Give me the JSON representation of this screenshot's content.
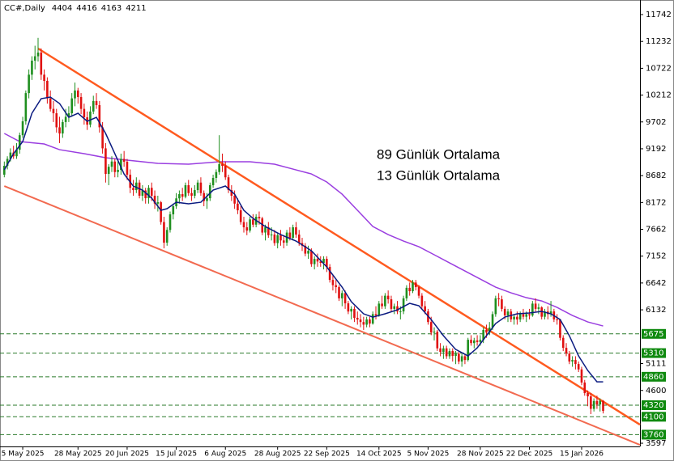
{
  "chart_data": {
    "type": "candlestick",
    "title": "CC#,Daily",
    "up_color": "#1f8f1f",
    "down_color": "#e01010",
    "xlim": [
      -1.4,
      207
    ],
    "ylim": [
      3536,
      12019
    ],
    "yticks": [
      11742,
      11232,
      10722,
      10212,
      9702,
      9192,
      8682,
      8172,
      7662,
      7152,
      6642,
      6132,
      5111,
      4600,
      3597
    ],
    "xticks": [
      {
        "value": 6,
        "label": "5 May 2025"
      },
      {
        "value": 24,
        "label": "28 May 2025"
      },
      {
        "value": 40,
        "label": "20 Jun 2025"
      },
      {
        "value": 56,
        "label": "15 Jul 2025"
      },
      {
        "value": 72,
        "label": "6 Aug 2025"
      },
      {
        "value": 89,
        "label": "28 Aug 2025"
      },
      {
        "value": 105,
        "label": "22 Sep 2025"
      },
      {
        "value": 122,
        "label": "14 Oct 2025"
      },
      {
        "value": 138,
        "label": "5 Nov 2025"
      },
      {
        "value": 155,
        "label": "28 Nov 2025"
      },
      {
        "value": 171,
        "label": "22 Dec 2025"
      },
      {
        "value": 188,
        "label": "15 Jan 2026"
      }
    ],
    "levels": [
      5675,
      5310,
      4860,
      4320,
      4100,
      3760
    ],
    "level_color": "#2a7a2a",
    "moving_averages": [
      {
        "name": "89 Günlük Ortalama",
        "color": "#9a3ee0",
        "x": [
          0,
          5,
          13,
          18,
          26,
          33,
          40,
          50,
          60,
          70,
          80,
          88,
          95,
          100,
          105,
          110,
          115,
          120,
          125,
          130,
          135,
          140,
          145,
          150,
          155,
          160,
          165,
          170,
          175,
          180,
          185,
          190,
          195
        ],
        "values": [
          9483,
          9329,
          9283,
          9175,
          9099,
          9022,
          8976,
          8914,
          8899,
          8945,
          8945,
          8899,
          8791,
          8714,
          8561,
          8330,
          8023,
          7715,
          7562,
          7439,
          7331,
          7178,
          7024,
          6870,
          6716,
          6563,
          6455,
          6363,
          6301,
          6178,
          6025,
          5902,
          5825
        ]
      },
      {
        "name": "13 Günlük Ortalama",
        "color": "#0a1a80",
        "x": [
          0,
          3,
          6,
          9,
          12,
          15,
          18,
          21,
          24,
          27,
          30,
          33,
          36,
          39,
          42,
          45,
          48,
          51,
          53,
          56,
          60,
          64,
          68,
          72,
          75,
          78,
          81,
          85,
          90,
          95,
          100,
          105,
          110,
          113,
          117,
          120,
          124,
          128,
          132,
          135,
          139,
          143,
          147,
          151,
          154,
          157,
          160,
          163,
          167,
          171,
          175,
          178,
          181,
          184,
          187,
          190,
          193,
          195
        ],
        "values": [
          8791,
          9099,
          9329,
          9867,
          10144,
          10175,
          10052,
          9790,
          9867,
          9714,
          9790,
          9483,
          9099,
          8714,
          8484,
          8407,
          8253,
          8023,
          8054,
          8176,
          8146,
          8176,
          8407,
          8484,
          8330,
          8023,
          7869,
          7715,
          7562,
          7439,
          7254,
          6947,
          6563,
          6286,
          6056,
          5994,
          6056,
          6132,
          6255,
          6209,
          5948,
          5640,
          5379,
          5256,
          5410,
          5640,
          5871,
          5994,
          6056,
          6071,
          6102,
          6056,
          5948,
          5640,
          5256,
          4979,
          4764,
          4764
        ]
      }
    ],
    "trendlines": [
      {
        "color": "#ff5a1f",
        "x": [
          11,
          207
        ],
        "values": [
          11097,
          3950
        ]
      },
      {
        "color": "#f26a50",
        "x": [
          0,
          207
        ],
        "values": [
          8484,
          3566
        ]
      }
    ],
    "candles": [
      [
        8700,
        8950,
        8650,
        8868
      ],
      [
        8868,
        9050,
        8800,
        9000
      ],
      [
        9000,
        9200,
        8950,
        9120
      ],
      [
        9120,
        9250,
        9000,
        9050
      ],
      [
        9050,
        9300,
        9000,
        9175
      ],
      [
        9175,
        9500,
        9100,
        9450
      ],
      [
        9450,
        9800,
        9400,
        9714
      ],
      [
        9714,
        10300,
        9650,
        10250
      ],
      [
        10250,
        10700,
        10150,
        10600
      ],
      [
        10600,
        10950,
        10500,
        10866
      ],
      [
        10866,
        11150,
        10700,
        10950
      ],
      [
        10950,
        11300,
        10850,
        11020
      ],
      [
        11020,
        11100,
        10500,
        10600
      ],
      [
        10600,
        10700,
        10300,
        10482
      ],
      [
        10482,
        10550,
        10050,
        10150
      ],
      [
        10150,
        10300,
        9900,
        9950
      ],
      [
        9950,
        10100,
        9700,
        9867
      ],
      [
        9867,
        9950,
        9500,
        9600
      ],
      [
        9600,
        9800,
        9300,
        9483
      ],
      [
        9483,
        9750,
        9400,
        9700
      ],
      [
        9700,
        9950,
        9600,
        9800
      ],
      [
        9800,
        10000,
        9700,
        9867
      ],
      [
        9867,
        10250,
        9800,
        10150
      ],
      [
        10150,
        10450,
        10000,
        10300
      ],
      [
        10300,
        10350,
        10050,
        10175
      ],
      [
        10175,
        10250,
        9850,
        9950
      ],
      [
        9950,
        10050,
        9650,
        9790
      ],
      [
        9790,
        9900,
        9550,
        9650
      ],
      [
        9650,
        10000,
        9600,
        9900
      ],
      [
        9900,
        10200,
        9850,
        10100
      ],
      [
        10100,
        10250,
        9950,
        10021
      ],
      [
        10021,
        10100,
        9500,
        9600
      ],
      [
        9600,
        9700,
        9100,
        9200
      ],
      [
        9200,
        9300,
        8550,
        8714
      ],
      [
        8714,
        8900,
        8500,
        8850
      ],
      [
        8850,
        9050,
        8750,
        8950
      ],
      [
        8950,
        9000,
        8650,
        8750
      ],
      [
        8750,
        8950,
        8650,
        8791
      ],
      [
        8791,
        9100,
        8700,
        9000
      ],
      [
        9000,
        9150,
        8850,
        8945
      ],
      [
        8945,
        9000,
        8600,
        8700
      ],
      [
        8700,
        8800,
        8350,
        8450
      ],
      [
        8450,
        8600,
        8300,
        8407
      ],
      [
        8407,
        8650,
        8350,
        8550
      ],
      [
        8550,
        8600,
        8250,
        8300
      ],
      [
        8300,
        8500,
        8200,
        8400
      ],
      [
        8400,
        8450,
        8150,
        8253
      ],
      [
        8253,
        8500,
        8150,
        8450
      ],
      [
        8450,
        8550,
        8200,
        8300
      ],
      [
        8300,
        8400,
        8050,
        8150
      ],
      [
        8150,
        8300,
        8000,
        8176
      ],
      [
        8176,
        8200,
        7750,
        7800
      ],
      [
        7800,
        7900,
        7300,
        7408
      ],
      [
        7408,
        7700,
        7350,
        7650
      ],
      [
        7650,
        8000,
        7600,
        7946
      ],
      [
        7946,
        8150,
        7850,
        8100
      ],
      [
        8100,
        8350,
        8050,
        8250
      ],
      [
        8250,
        8400,
        8150,
        8330
      ],
      [
        8330,
        8450,
        8200,
        8280
      ],
      [
        8280,
        8550,
        8250,
        8500
      ],
      [
        8500,
        8600,
        8300,
        8350
      ],
      [
        8350,
        8450,
        8200,
        8300
      ],
      [
        8300,
        8500,
        8250,
        8407
      ],
      [
        8407,
        8600,
        8350,
        8550
      ],
      [
        8550,
        8650,
        8300,
        8350
      ],
      [
        8350,
        8400,
        8100,
        8200
      ],
      [
        8200,
        8350,
        8050,
        8253
      ],
      [
        8253,
        8550,
        8200,
        8500
      ],
      [
        8500,
        8700,
        8450,
        8638
      ],
      [
        8638,
        8800,
        8550,
        8750
      ],
      [
        8750,
        9450,
        8700,
        8900
      ],
      [
        8900,
        9100,
        8750,
        8868
      ],
      [
        8868,
        8950,
        8600,
        8650
      ],
      [
        8650,
        8700,
        8350,
        8407
      ],
      [
        8407,
        8500,
        8200,
        8300
      ],
      [
        8300,
        8400,
        8050,
        8150
      ],
      [
        8150,
        8250,
        7950,
        8023
      ],
      [
        8023,
        8100,
        7750,
        7800
      ],
      [
        7800,
        7900,
        7600,
        7700
      ],
      [
        7700,
        7800,
        7550,
        7638
      ],
      [
        7638,
        7900,
        7600,
        7850
      ],
      [
        7850,
        7950,
        7700,
        7750
      ],
      [
        7750,
        7950,
        7700,
        7900
      ],
      [
        7900,
        8000,
        7750,
        7869
      ],
      [
        7869,
        7900,
        7550,
        7600
      ],
      [
        7600,
        7750,
        7450,
        7700
      ],
      [
        7700,
        7800,
        7500,
        7550
      ],
      [
        7550,
        7700,
        7450,
        7562
      ],
      [
        7562,
        7650,
        7350,
        7400
      ],
      [
        7400,
        7600,
        7300,
        7550
      ],
      [
        7550,
        7650,
        7350,
        7450
      ],
      [
        7450,
        7550,
        7300,
        7408
      ],
      [
        7408,
        7650,
        7350,
        7600
      ],
      [
        7600,
        7700,
        7450,
        7500
      ],
      [
        7500,
        7750,
        7450,
        7700
      ],
      [
        7700,
        7800,
        7500,
        7562
      ],
      [
        7562,
        7650,
        7350,
        7400
      ],
      [
        7400,
        7500,
        7250,
        7350
      ],
      [
        7350,
        7400,
        7150,
        7200
      ],
      [
        7200,
        7350,
        7100,
        7254
      ],
      [
        7254,
        7300,
        6950,
        7000
      ],
      [
        7000,
        7150,
        6900,
        7100
      ],
      [
        7100,
        7200,
        6950,
        7050
      ],
      [
        7050,
        7150,
        6950,
        7024
      ],
      [
        7024,
        7150,
        6900,
        7100
      ],
      [
        7100,
        7150,
        6850,
        6947
      ],
      [
        6947,
        7000,
        6650,
        6700
      ],
      [
        6700,
        6800,
        6500,
        6600
      ],
      [
        6600,
        6700,
        6450,
        6563
      ],
      [
        6563,
        6600,
        6300,
        6350
      ],
      [
        6350,
        6500,
        6200,
        6450
      ],
      [
        6450,
        6500,
        6150,
        6255
      ],
      [
        6255,
        6300,
        6050,
        6100
      ],
      [
        6100,
        6200,
        5950,
        6150
      ],
      [
        6150,
        6200,
        5900,
        5980
      ],
      [
        5980,
        6100,
        5850,
        5948
      ],
      [
        5948,
        6050,
        5800,
        5900
      ],
      [
        5900,
        6000,
        5750,
        5850
      ],
      [
        5850,
        6000,
        5800,
        5950
      ],
      [
        5950,
        6000,
        5800,
        5871
      ],
      [
        5871,
        6100,
        5850,
        6050
      ],
      [
        6050,
        6200,
        5950,
        6025
      ],
      [
        6025,
        6300,
        6000,
        6250
      ],
      [
        6250,
        6400,
        6150,
        6200
      ],
      [
        6200,
        6450,
        6150,
        6400
      ],
      [
        6400,
        6500,
        6250,
        6332
      ],
      [
        6332,
        6400,
        6100,
        6150
      ],
      [
        6150,
        6250,
        6050,
        6200
      ],
      [
        6200,
        6300,
        6050,
        6100
      ],
      [
        6100,
        6200,
        5950,
        6102
      ],
      [
        6102,
        6400,
        6050,
        6350
      ],
      [
        6350,
        6600,
        6300,
        6550
      ],
      [
        6550,
        6650,
        6400,
        6486
      ],
      [
        6486,
        6700,
        6450,
        6650
      ],
      [
        6650,
        6700,
        6500,
        6563
      ],
      [
        6563,
        6600,
        6350,
        6400
      ],
      [
        6400,
        6450,
        6150,
        6200
      ],
      [
        6200,
        6300,
        6050,
        6102
      ],
      [
        6102,
        6150,
        5850,
        5900
      ],
      [
        5900,
        6000,
        5650,
        5700
      ],
      [
        5700,
        5800,
        5550,
        5717
      ],
      [
        5717,
        5750,
        5350,
        5400
      ],
      [
        5400,
        5500,
        5250,
        5333
      ],
      [
        5333,
        5450,
        5200,
        5400
      ],
      [
        5400,
        5450,
        5200,
        5250
      ],
      [
        5250,
        5400,
        5200,
        5350
      ],
      [
        5350,
        5400,
        5150,
        5256
      ],
      [
        5256,
        5350,
        5100,
        5300
      ],
      [
        5300,
        5350,
        5100,
        5150
      ],
      [
        5150,
        5300,
        5050,
        5250
      ],
      [
        5250,
        5300,
        5100,
        5179
      ],
      [
        5179,
        5600,
        5150,
        5563
      ],
      [
        5563,
        5650,
        5450,
        5500
      ],
      [
        5500,
        5600,
        5400,
        5550
      ],
      [
        5550,
        5650,
        5450,
        5520
      ],
      [
        5520,
        5650,
        5450,
        5563
      ],
      [
        5563,
        5800,
        5500,
        5750
      ],
      [
        5750,
        5850,
        5600,
        5700
      ],
      [
        5700,
        5900,
        5650,
        5794
      ],
      [
        5794,
        6100,
        5750,
        6050
      ],
      [
        6050,
        6400,
        6000,
        6350
      ],
      [
        6350,
        6450,
        6200,
        6332
      ],
      [
        6332,
        6400,
        6100,
        6150
      ],
      [
        6150,
        6200,
        5950,
        6025
      ],
      [
        6025,
        6150,
        5900,
        6100
      ],
      [
        6100,
        6150,
        5900,
        5950
      ],
      [
        5950,
        6050,
        5850,
        6000
      ],
      [
        6000,
        6100,
        5850,
        5948
      ],
      [
        5948,
        6100,
        5900,
        6050
      ],
      [
        6050,
        6150,
        5950,
        6000
      ],
      [
        6000,
        6100,
        5900,
        6050
      ],
      [
        6050,
        6150,
        5950,
        6025
      ],
      [
        6025,
        6300,
        6000,
        6250
      ],
      [
        6250,
        6350,
        6100,
        6150
      ],
      [
        6150,
        6250,
        6050,
        6178
      ],
      [
        6178,
        6200,
        5950,
        6000
      ],
      [
        6000,
        6150,
        5950,
        6100
      ],
      [
        6100,
        6200,
        5950,
        6050
      ],
      [
        6050,
        6300,
        6000,
        6102
      ],
      [
        6102,
        6150,
        5900,
        5950
      ],
      [
        5950,
        6050,
        5850,
        5948
      ],
      [
        5948,
        5950,
        5550,
        5600
      ],
      [
        5600,
        5650,
        5350,
        5410
      ],
      [
        5410,
        5500,
        5250,
        5300
      ],
      [
        5300,
        5350,
        5100,
        5150
      ],
      [
        5150,
        5250,
        5050,
        5179
      ],
      [
        5179,
        5250,
        5000,
        5102
      ],
      [
        5102,
        5150,
        4950,
        5000
      ],
      [
        5000,
        5050,
        4700,
        4750
      ],
      [
        4750,
        4800,
        4500,
        4550
      ],
      [
        4550,
        4600,
        4300,
        4488
      ],
      [
        4488,
        4550,
        4150,
        4250
      ],
      [
        4250,
        4450,
        4200,
        4400
      ],
      [
        4400,
        4500,
        4250,
        4334
      ],
      [
        4334,
        4450,
        4200,
        4404
      ],
      [
        4404,
        4416,
        4163,
        4211
      ]
    ]
  }
}
